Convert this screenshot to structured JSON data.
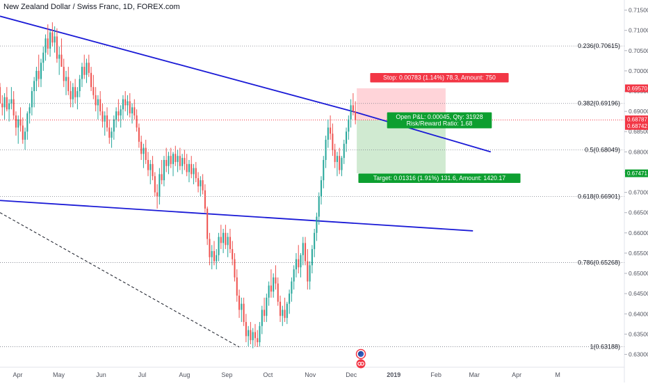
{
  "header": {
    "symbol_title": "New Zealand Dollar / Swiss Franc, 1D, FOREX.com"
  },
  "chart_data": {
    "type": "candlestick",
    "colors": {
      "up": "#26a69a",
      "down": "#ef5350",
      "trendline": "#1a1ad6",
      "fib_line": "#787b86",
      "stop_zone": "#ffcdd2",
      "target_zone": "#c8e6c9",
      "stop_label_bg": "#f23645",
      "target_label_bg": "#0d9f30",
      "pnl_label_bg": "#0d9f30",
      "current_price_bg": "#f23645"
    },
    "x_axis": {
      "ticks": [
        "Apr",
        "May",
        "Jun",
        "Jul",
        "Aug",
        "Sep",
        "Oct",
        "Nov",
        "Dec",
        "2019",
        "Feb",
        "Mar",
        "Apr",
        "M"
      ]
    },
    "y_axis": {
      "ylim": [
        0.6282,
        0.7175
      ],
      "ticks": [
        "0.71500",
        "0.71000",
        "0.70500",
        "0.70000",
        "0.69500",
        "0.69000",
        "0.68500",
        "0.68000",
        "0.67500",
        "0.67000",
        "0.66500",
        "0.66000",
        "0.65500",
        "0.65000",
        "0.64500",
        "0.64000",
        "0.63500",
        "0.63000"
      ]
    },
    "price_tags": [
      {
        "text": "0.69570",
        "value": 0.6957,
        "color": "#f23645"
      },
      {
        "text": "0.68787",
        "value": 0.68787,
        "color": "#f23645"
      },
      {
        "text": "0.68742",
        "value": 0.68742,
        "color": "#f23645"
      },
      {
        "text": "0.67471",
        "value": 0.67471,
        "color": "#0d9f30"
      }
    ],
    "fib_levels": [
      {
        "label": "0.236(0.70615)",
        "value": 0.70615
      },
      {
        "label": "0.382(0.69196)",
        "value": 0.69196
      },
      {
        "label": "0.5(0.68049)",
        "value": 0.68049
      },
      {
        "label": "0.618(0.66901)",
        "value": 0.66901
      },
      {
        "label": "0.786(0.65268)",
        "value": 0.65268
      },
      {
        "label": "1(0.63188)",
        "value": 0.63188
      }
    ],
    "trade": {
      "entry": 0.68787,
      "stop": 0.6957,
      "target": 0.67471,
      "stop_label": "Stop: 0.00783 (1.14%) 78.3, Amount: 750",
      "pnl_label": "Open P&L: 0.00045, Qty: 31928",
      "rr_label": "Risk/Reward Ratio: 1.68",
      "target_label": "Target: 0.01316 (1.91%) 131.6, Amount: 1420.17"
    },
    "trendlines": [
      {
        "name": "upper",
        "style": "solid",
        "points": [
          [
            "2018-03-19",
            0.7135
          ],
          [
            "2018-12-04",
            0.6898
          ],
          [
            "2019-03-13",
            0.68
          ]
        ]
      },
      {
        "name": "lower",
        "style": "solid",
        "points": [
          [
            "2018-03-19",
            0.668
          ],
          [
            "2019-02-28",
            0.6605
          ]
        ]
      },
      {
        "name": "dashed",
        "style": "dashed",
        "points": [
          [
            "2018-03-19",
            0.665
          ],
          [
            "2018-09-10",
            0.6318
          ]
        ]
      }
    ],
    "candles": [
      [
        0.696,
        0.697,
        0.692,
        0.692
      ],
      [
        0.692,
        0.694,
        0.689,
        0.691
      ],
      [
        0.691,
        0.6945,
        0.688,
        0.6935
      ],
      [
        0.6935,
        0.696,
        0.69,
        0.6905
      ],
      [
        0.6905,
        0.693,
        0.6875,
        0.692
      ],
      [
        0.692,
        0.696,
        0.6905,
        0.693
      ],
      [
        0.693,
        0.695,
        0.688,
        0.689
      ],
      [
        0.689,
        0.69,
        0.684,
        0.686
      ],
      [
        0.686,
        0.689,
        0.682,
        0.688
      ],
      [
        0.688,
        0.691,
        0.685,
        0.6865
      ],
      [
        0.6865,
        0.6885,
        0.682,
        0.683
      ],
      [
        0.683,
        0.686,
        0.6805,
        0.685
      ],
      [
        0.685,
        0.69,
        0.683,
        0.6895
      ],
      [
        0.6895,
        0.692,
        0.687,
        0.691
      ],
      [
        0.691,
        0.696,
        0.689,
        0.695
      ],
      [
        0.695,
        0.6985,
        0.691,
        0.6975
      ],
      [
        0.6975,
        0.701,
        0.695,
        0.7
      ],
      [
        0.7,
        0.704,
        0.696,
        0.698
      ],
      [
        0.698,
        0.703,
        0.696,
        0.702
      ],
      [
        0.702,
        0.706,
        0.7,
        0.7045
      ],
      [
        0.7045,
        0.709,
        0.7025,
        0.708
      ],
      [
        0.708,
        0.7115,
        0.704,
        0.7055
      ],
      [
        0.7055,
        0.71,
        0.7035,
        0.7095
      ],
      [
        0.7095,
        0.712,
        0.706,
        0.707
      ],
      [
        0.707,
        0.711,
        0.7045,
        0.7085
      ],
      [
        0.7085,
        0.7105,
        0.702,
        0.703
      ],
      [
        0.703,
        0.706,
        0.699,
        0.704
      ],
      [
        0.704,
        0.708,
        0.701,
        0.701
      ],
      [
        0.701,
        0.703,
        0.696,
        0.6975
      ],
      [
        0.6975,
        0.7,
        0.694,
        0.6985
      ],
      [
        0.6985,
        0.701,
        0.694,
        0.695
      ],
      [
        0.695,
        0.6975,
        0.691,
        0.693
      ],
      [
        0.693,
        0.697,
        0.691,
        0.696
      ],
      [
        0.696,
        0.698,
        0.692,
        0.6935
      ],
      [
        0.6935,
        0.696,
        0.6905,
        0.695
      ],
      [
        0.695,
        0.699,
        0.6935,
        0.698
      ],
      [
        0.698,
        0.702,
        0.696,
        0.701
      ],
      [
        0.701,
        0.704,
        0.698,
        0.699
      ],
      [
        0.699,
        0.703,
        0.697,
        0.702
      ],
      [
        0.702,
        0.704,
        0.6985,
        0.6995
      ],
      [
        0.6995,
        0.701,
        0.695,
        0.696
      ],
      [
        0.696,
        0.699,
        0.693,
        0.694
      ],
      [
        0.694,
        0.696,
        0.69,
        0.6915
      ],
      [
        0.6915,
        0.694,
        0.688,
        0.693
      ],
      [
        0.693,
        0.695,
        0.689,
        0.69
      ],
      [
        0.69,
        0.692,
        0.686,
        0.6875
      ],
      [
        0.6875,
        0.69,
        0.684,
        0.689
      ],
      [
        0.689,
        0.691,
        0.685,
        0.686
      ],
      [
        0.686,
        0.688,
        0.682,
        0.6835
      ],
      [
        0.6835,
        0.686,
        0.681,
        0.685
      ],
      [
        0.685,
        0.689,
        0.683,
        0.688
      ],
      [
        0.688,
        0.691,
        0.686,
        0.69
      ],
      [
        0.69,
        0.693,
        0.6875,
        0.689
      ],
      [
        0.689,
        0.6915,
        0.686,
        0.6905
      ],
      [
        0.6905,
        0.694,
        0.688,
        0.693
      ],
      [
        0.693,
        0.695,
        0.69,
        0.6915
      ],
      [
        0.6915,
        0.694,
        0.689,
        0.6925
      ],
      [
        0.6925,
        0.6945,
        0.6885,
        0.6895
      ],
      [
        0.6895,
        0.692,
        0.687,
        0.691
      ],
      [
        0.691,
        0.693,
        0.688,
        0.689
      ],
      [
        0.689,
        0.6905,
        0.685,
        0.686
      ],
      [
        0.686,
        0.687,
        0.681,
        0.6825
      ],
      [
        0.6825,
        0.684,
        0.678,
        0.6795
      ],
      [
        0.6795,
        0.682,
        0.676,
        0.681
      ],
      [
        0.681,
        0.683,
        0.677,
        0.678
      ],
      [
        0.678,
        0.68,
        0.674,
        0.6755
      ],
      [
        0.6755,
        0.678,
        0.672,
        0.677
      ],
      [
        0.677,
        0.679,
        0.673,
        0.674
      ],
      [
        0.674,
        0.675,
        0.669,
        0.67
      ],
      [
        0.67,
        0.672,
        0.666,
        0.669
      ],
      [
        0.669,
        0.676,
        0.667,
        0.6745
      ],
      [
        0.6745,
        0.678,
        0.672,
        0.673
      ],
      [
        0.673,
        0.679,
        0.6715,
        0.678
      ],
      [
        0.678,
        0.681,
        0.675,
        0.6765
      ],
      [
        0.6765,
        0.68,
        0.6745,
        0.679
      ],
      [
        0.679,
        0.681,
        0.676,
        0.677
      ],
      [
        0.677,
        0.68,
        0.674,
        0.6795
      ],
      [
        0.6795,
        0.6815,
        0.6765,
        0.6775
      ],
      [
        0.6775,
        0.6805,
        0.675,
        0.679
      ],
      [
        0.679,
        0.681,
        0.6755,
        0.6765
      ],
      [
        0.6765,
        0.6795,
        0.6745,
        0.6785
      ],
      [
        0.6785,
        0.6805,
        0.6755,
        0.677
      ],
      [
        0.677,
        0.6795,
        0.674,
        0.675
      ],
      [
        0.675,
        0.678,
        0.6725,
        0.677
      ],
      [
        0.677,
        0.679,
        0.6735,
        0.6745
      ],
      [
        0.6745,
        0.677,
        0.672,
        0.676
      ],
      [
        0.676,
        0.6775,
        0.6725,
        0.6735
      ],
      [
        0.6735,
        0.675,
        0.67,
        0.6715
      ],
      [
        0.6715,
        0.674,
        0.669,
        0.673
      ],
      [
        0.673,
        0.6745,
        0.6695,
        0.6705
      ],
      [
        0.6705,
        0.672,
        0.665,
        0.666
      ],
      [
        0.666,
        0.6665,
        0.657,
        0.6585
      ],
      [
        0.6585,
        0.66,
        0.652,
        0.654
      ],
      [
        0.654,
        0.657,
        0.651,
        0.6555
      ],
      [
        0.6555,
        0.658,
        0.652,
        0.653
      ],
      [
        0.653,
        0.656,
        0.651,
        0.6545
      ],
      [
        0.6545,
        0.66,
        0.653,
        0.659
      ],
      [
        0.659,
        0.662,
        0.656,
        0.6575
      ],
      [
        0.6575,
        0.661,
        0.655,
        0.66
      ],
      [
        0.66,
        0.662,
        0.656,
        0.657
      ],
      [
        0.657,
        0.66,
        0.654,
        0.659
      ],
      [
        0.659,
        0.661,
        0.655,
        0.656
      ],
      [
        0.656,
        0.658,
        0.652,
        0.6535
      ],
      [
        0.6535,
        0.655,
        0.648,
        0.649
      ],
      [
        0.649,
        0.651,
        0.643,
        0.6445
      ],
      [
        0.6445,
        0.646,
        0.639,
        0.641
      ],
      [
        0.641,
        0.644,
        0.638,
        0.6425
      ],
      [
        0.6425,
        0.644,
        0.637,
        0.638
      ],
      [
        0.638,
        0.64,
        0.633,
        0.6345
      ],
      [
        0.6345,
        0.637,
        0.632,
        0.636
      ],
      [
        0.636,
        0.638,
        0.6325,
        0.6335
      ],
      [
        0.6335,
        0.6365,
        0.6315,
        0.6355
      ],
      [
        0.6355,
        0.6375,
        0.632,
        0.634
      ],
      [
        0.634,
        0.636,
        0.6318,
        0.633
      ],
      [
        0.633,
        0.638,
        0.632,
        0.637
      ],
      [
        0.637,
        0.642,
        0.635,
        0.641
      ],
      [
        0.641,
        0.644,
        0.638,
        0.6395
      ],
      [
        0.6395,
        0.645,
        0.638,
        0.644
      ],
      [
        0.644,
        0.648,
        0.642,
        0.647
      ],
      [
        0.647,
        0.651,
        0.644,
        0.6455
      ],
      [
        0.6455,
        0.65,
        0.644,
        0.649
      ],
      [
        0.649,
        0.652,
        0.646,
        0.6475
      ],
      [
        0.6475,
        0.649,
        0.642,
        0.643
      ],
      [
        0.643,
        0.6445,
        0.638,
        0.6395
      ],
      [
        0.6395,
        0.642,
        0.637,
        0.641
      ],
      [
        0.641,
        0.644,
        0.638,
        0.639
      ],
      [
        0.639,
        0.643,
        0.6375,
        0.6425
      ],
      [
        0.6425,
        0.646,
        0.64,
        0.645
      ],
      [
        0.645,
        0.649,
        0.643,
        0.648
      ],
      [
        0.648,
        0.652,
        0.646,
        0.651
      ],
      [
        0.651,
        0.655,
        0.649,
        0.6535
      ],
      [
        0.6535,
        0.657,
        0.65,
        0.6515
      ],
      [
        0.6515,
        0.655,
        0.649,
        0.6545
      ],
      [
        0.6545,
        0.659,
        0.652,
        0.6575
      ],
      [
        0.6575,
        0.659,
        0.652,
        0.653
      ],
      [
        0.653,
        0.656,
        0.646,
        0.648
      ],
      [
        0.648,
        0.653,
        0.646,
        0.652
      ],
      [
        0.652,
        0.657,
        0.65,
        0.656
      ],
      [
        0.656,
        0.661,
        0.654,
        0.66
      ],
      [
        0.66,
        0.665,
        0.658,
        0.664
      ],
      [
        0.664,
        0.67,
        0.662,
        0.669
      ],
      [
        0.669,
        0.674,
        0.667,
        0.673
      ],
      [
        0.673,
        0.679,
        0.671,
        0.678
      ],
      [
        0.678,
        0.684,
        0.676,
        0.683
      ],
      [
        0.683,
        0.688,
        0.681,
        0.686
      ],
      [
        0.686,
        0.689,
        0.683,
        0.6845
      ],
      [
        0.6845,
        0.687,
        0.679,
        0.6805
      ],
      [
        0.6805,
        0.682,
        0.676,
        0.6775
      ],
      [
        0.6775,
        0.68,
        0.674,
        0.679
      ],
      [
        0.679,
        0.681,
        0.6745,
        0.6755
      ],
      [
        0.6755,
        0.679,
        0.674,
        0.6785
      ],
      [
        0.6785,
        0.683,
        0.677,
        0.682
      ],
      [
        0.682,
        0.686,
        0.68,
        0.685
      ],
      [
        0.685,
        0.689,
        0.683,
        0.688
      ],
      [
        0.688,
        0.693,
        0.686,
        0.6915
      ],
      [
        0.6915,
        0.6945,
        0.689,
        0.69
      ],
      [
        0.69,
        0.6925,
        0.6868,
        0.6879
      ]
    ]
  }
}
